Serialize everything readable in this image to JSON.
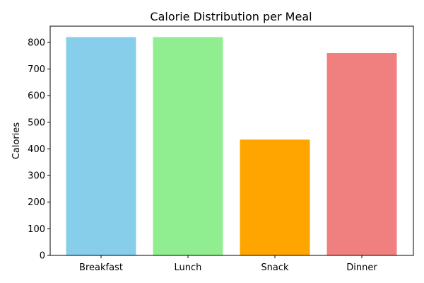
{
  "chart_data": {
    "type": "bar",
    "title": "Calorie Distribution per Meal",
    "xlabel": "",
    "ylabel": "Calories",
    "categories": [
      "Breakfast",
      "Lunch",
      "Snack",
      "Dinner"
    ],
    "values": [
      820,
      820,
      435,
      760
    ],
    "colors": [
      "#87ceeb",
      "#90ee90",
      "#ffa500",
      "#f08080"
    ],
    "ylim": [
      0,
      861
    ],
    "yticks": [
      0,
      100,
      200,
      300,
      400,
      500,
      600,
      700,
      800
    ],
    "grid": false,
    "legend": "none"
  }
}
